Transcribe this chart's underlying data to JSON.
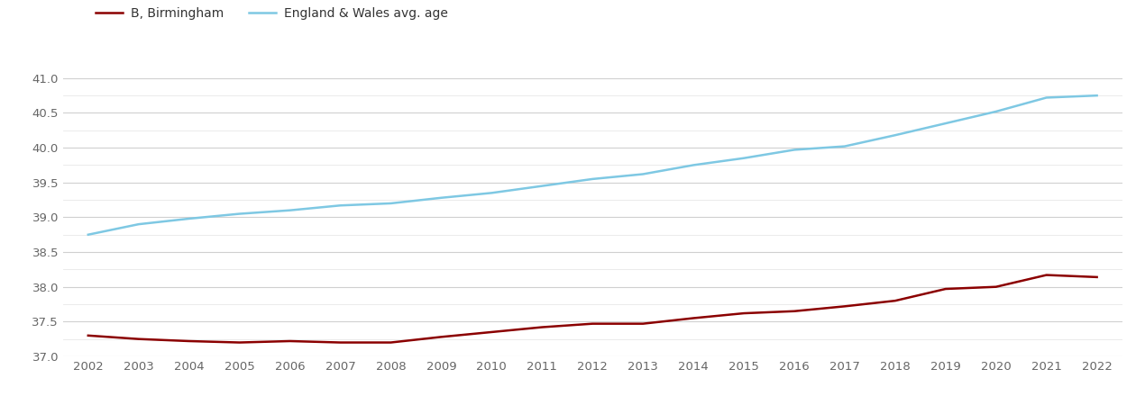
{
  "years": [
    2002,
    2003,
    2004,
    2005,
    2006,
    2007,
    2008,
    2009,
    2010,
    2011,
    2012,
    2013,
    2014,
    2015,
    2016,
    2017,
    2018,
    2019,
    2020,
    2021,
    2022
  ],
  "birmingham": [
    37.3,
    37.25,
    37.22,
    37.2,
    37.22,
    37.2,
    37.2,
    37.28,
    37.35,
    37.42,
    37.47,
    37.47,
    37.55,
    37.62,
    37.65,
    37.72,
    37.8,
    37.97,
    38.0,
    38.17,
    38.14
  ],
  "england_wales": [
    38.75,
    38.9,
    38.98,
    39.05,
    39.1,
    39.17,
    39.2,
    39.28,
    39.35,
    39.45,
    39.55,
    39.62,
    39.75,
    39.85,
    39.97,
    40.02,
    40.18,
    40.35,
    40.52,
    40.72,
    40.75
  ],
  "birmingham_label": "B, Birmingham",
  "england_wales_label": "England & Wales avg. age",
  "birmingham_color": "#8b0000",
  "england_wales_color": "#7ec8e3",
  "ylim": [
    37.0,
    41.25
  ],
  "yticks": [
    37.0,
    37.5,
    38.0,
    38.5,
    39.0,
    39.5,
    40.0,
    40.5,
    41.0
  ],
  "minor_yticks": [
    37.25,
    37.75,
    38.25,
    38.75,
    39.25,
    39.75,
    40.25,
    40.75
  ],
  "background_color": "#ffffff",
  "grid_color": "#d0d0d0",
  "minor_grid_color": "#e8e8e8",
  "line_width": 1.8,
  "tick_label_color": "#666666",
  "tick_fontsize": 9.5
}
